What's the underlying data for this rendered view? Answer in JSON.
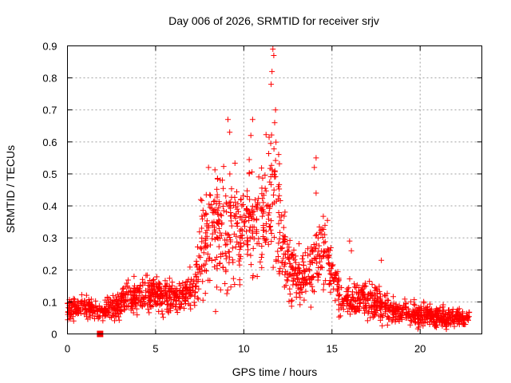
{
  "chart_data": {
    "type": "scatter",
    "title": "Day 006 of 2026, SRMTID for receiver srjv",
    "xlabel": "GPS time / hours",
    "ylabel": "SRMTID / TECUs",
    "xlim": [
      0,
      23.5
    ],
    "ylim": [
      0,
      0.9
    ],
    "xticks": [
      0,
      5,
      10,
      15,
      20
    ],
    "yticks": [
      0,
      0.1,
      0.2,
      0.3,
      0.4,
      0.5,
      0.6,
      0.7,
      0.8,
      0.9
    ],
    "grid": true,
    "marker": "plus",
    "color": "#ff0000",
    "envelope": [
      {
        "x": 0.0,
        "center": 0.08,
        "spread": 0.025
      },
      {
        "x": 1.0,
        "center": 0.09,
        "spread": 0.03
      },
      {
        "x": 1.8,
        "center": 0.07,
        "spread": 0.025
      },
      {
        "x": 2.5,
        "center": 0.08,
        "spread": 0.03
      },
      {
        "x": 3.5,
        "center": 0.11,
        "spread": 0.04
      },
      {
        "x": 4.5,
        "center": 0.13,
        "spread": 0.05
      },
      {
        "x": 5.5,
        "center": 0.12,
        "spread": 0.04
      },
      {
        "x": 6.5,
        "center": 0.12,
        "spread": 0.04
      },
      {
        "x": 7.2,
        "center": 0.14,
        "spread": 0.05
      },
      {
        "x": 7.6,
        "center": 0.28,
        "spread": 0.12
      },
      {
        "x": 8.3,
        "center": 0.32,
        "spread": 0.14
      },
      {
        "x": 9.0,
        "center": 0.35,
        "spread": 0.15
      },
      {
        "x": 9.7,
        "center": 0.3,
        "spread": 0.14
      },
      {
        "x": 10.4,
        "center": 0.38,
        "spread": 0.15
      },
      {
        "x": 11.0,
        "center": 0.35,
        "spread": 0.15
      },
      {
        "x": 11.6,
        "center": 0.45,
        "spread": 0.2
      },
      {
        "x": 12.2,
        "center": 0.28,
        "spread": 0.13
      },
      {
        "x": 13.0,
        "center": 0.18,
        "spread": 0.06
      },
      {
        "x": 13.8,
        "center": 0.2,
        "spread": 0.08
      },
      {
        "x": 14.4,
        "center": 0.28,
        "spread": 0.1
      },
      {
        "x": 15.0,
        "center": 0.2,
        "spread": 0.06
      },
      {
        "x": 15.5,
        "center": 0.1,
        "spread": 0.04
      },
      {
        "x": 16.5,
        "center": 0.11,
        "spread": 0.05
      },
      {
        "x": 17.5,
        "center": 0.1,
        "spread": 0.05
      },
      {
        "x": 18.5,
        "center": 0.07,
        "spread": 0.03
      },
      {
        "x": 20.0,
        "center": 0.06,
        "spread": 0.03
      },
      {
        "x": 21.5,
        "center": 0.05,
        "spread": 0.025
      },
      {
        "x": 22.8,
        "center": 0.05,
        "spread": 0.02
      }
    ],
    "notable_points": [
      {
        "x": 11.65,
        "y": 0.89
      },
      {
        "x": 11.7,
        "y": 0.87
      },
      {
        "x": 11.6,
        "y": 0.82
      },
      {
        "x": 11.55,
        "y": 0.78
      },
      {
        "x": 11.8,
        "y": 0.7
      },
      {
        "x": 11.75,
        "y": 0.66
      },
      {
        "x": 9.1,
        "y": 0.67
      },
      {
        "x": 9.2,
        "y": 0.63
      },
      {
        "x": 10.5,
        "y": 0.67
      },
      {
        "x": 10.4,
        "y": 0.62
      },
      {
        "x": 8.0,
        "y": 0.52
      },
      {
        "x": 14.1,
        "y": 0.55
      },
      {
        "x": 14.0,
        "y": 0.52
      },
      {
        "x": 14.1,
        "y": 0.44
      },
      {
        "x": 16.0,
        "y": 0.29
      },
      {
        "x": 16.1,
        "y": 0.26
      },
      {
        "x": 17.8,
        "y": 0.23
      },
      {
        "x": 8.4,
        "y": 0.07
      }
    ],
    "low_marker": {
      "x": 1.85,
      "y": 0.0,
      "shape": "square"
    }
  }
}
